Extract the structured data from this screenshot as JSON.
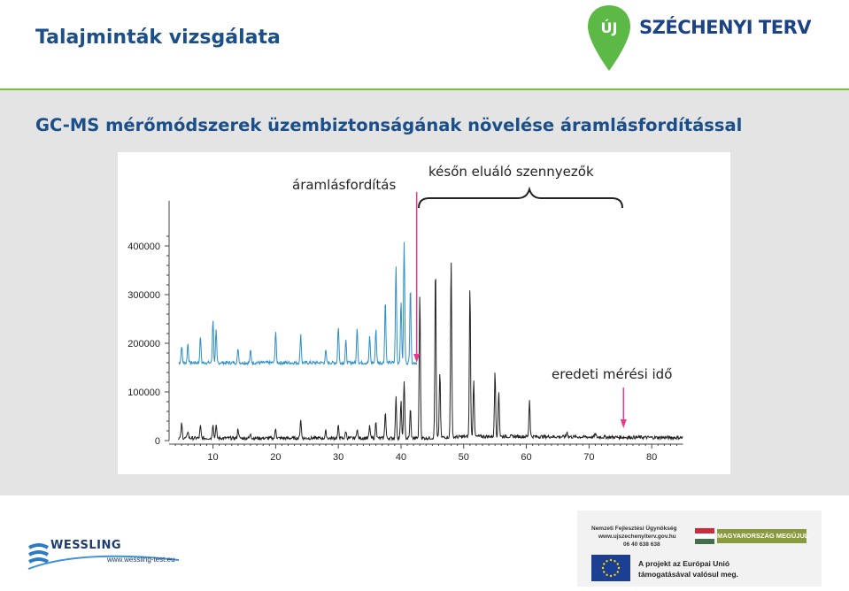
{
  "header": {
    "title": "Talajminták vizsgálata",
    "logo_text": "SZÉCHENYI TERV",
    "logo_badge": "ÚJ"
  },
  "slide": {
    "subtitle": "GC-MS mérőmódszerek üzembiztonságának növelése áramlásfordítással"
  },
  "chart_data": {
    "type": "line",
    "title": "",
    "xlabel": "",
    "ylabel": "",
    "xlim": [
      3,
      85
    ],
    "ylim": [
      0,
      420000
    ],
    "x_ticks": [
      "10",
      "20",
      "30",
      "40",
      "50",
      "60",
      "70",
      "80"
    ],
    "y_ticks": [
      "0",
      "100000",
      "200000",
      "300000",
      "400000"
    ],
    "annotations": {
      "backflush_label": "áramlásfordítás",
      "late_eluting_label": "későn eluáló szennyezők",
      "original_time_label": "eredeti mérési idő"
    },
    "backflush_time": 42.5,
    "original_end_time": 75.5,
    "series": [
      {
        "color": "#2f8fc6",
        "x_end": 42.5,
        "baseline": 160000,
        "peaks": [
          {
            "x": 5,
            "y": 195000
          },
          {
            "x": 6,
            "y": 200000
          },
          {
            "x": 8,
            "y": 215000
          },
          {
            "x": 10,
            "y": 250000
          },
          {
            "x": 10.5,
            "y": 225000
          },
          {
            "x": 14,
            "y": 190000
          },
          {
            "x": 16,
            "y": 185000
          },
          {
            "x": 20,
            "y": 225000
          },
          {
            "x": 24,
            "y": 220000
          },
          {
            "x": 28,
            "y": 185000
          },
          {
            "x": 30,
            "y": 235000
          },
          {
            "x": 31.2,
            "y": 205000
          },
          {
            "x": 33,
            "y": 235000
          },
          {
            "x": 35,
            "y": 215000
          },
          {
            "x": 36,
            "y": 230000
          },
          {
            "x": 37.5,
            "y": 290000
          },
          {
            "x": 39.2,
            "y": 362000
          },
          {
            "x": 40,
            "y": 290000
          },
          {
            "x": 40.5,
            "y": 410000
          },
          {
            "x": 41.5,
            "y": 320000
          }
        ]
      },
      {
        "color": "#222222",
        "x_end": 85,
        "baseline": 5000,
        "peaks": [
          {
            "x": 5,
            "y": 35000
          },
          {
            "x": 6,
            "y": 20000
          },
          {
            "x": 8,
            "y": 30000
          },
          {
            "x": 10,
            "y": 35000
          },
          {
            "x": 10.5,
            "y": 32000
          },
          {
            "x": 14,
            "y": 25000
          },
          {
            "x": 16,
            "y": 15000
          },
          {
            "x": 20,
            "y": 25000
          },
          {
            "x": 24,
            "y": 45000
          },
          {
            "x": 28,
            "y": 20000
          },
          {
            "x": 30,
            "y": 30000
          },
          {
            "x": 31.2,
            "y": 20000
          },
          {
            "x": 33,
            "y": 25000
          },
          {
            "x": 35,
            "y": 30000
          },
          {
            "x": 36,
            "y": 40000
          },
          {
            "x": 37.5,
            "y": 60000
          },
          {
            "x": 39.2,
            "y": 90000
          },
          {
            "x": 40,
            "y": 80000
          },
          {
            "x": 40.5,
            "y": 125000
          },
          {
            "x": 41.5,
            "y": 65000
          },
          {
            "x": 43,
            "y": 305000
          },
          {
            "x": 45.5,
            "y": 360000
          },
          {
            "x": 46.2,
            "y": 140000
          },
          {
            "x": 48,
            "y": 375000
          },
          {
            "x": 51,
            "y": 315000
          },
          {
            "x": 51.6,
            "y": 125000
          },
          {
            "x": 55,
            "y": 140000
          },
          {
            "x": 55.6,
            "y": 100000
          },
          {
            "x": 60.5,
            "y": 80000
          },
          {
            "x": 66.5,
            "y": 15000
          },
          {
            "x": 71,
            "y": 12000
          }
        ]
      }
    ]
  },
  "footer": {
    "wessling_name": "WESSLING",
    "wessling_url": "www.wessling-test.eu",
    "nfu_lines": [
      "Nemzeti Fejlesztési Ügynökség",
      "www.ujszechenyiterv.gov.hu",
      "06 40 638 638"
    ],
    "magyarorszag": "MAGYARORSZÁG MEGÚJUL",
    "eu_line1": "A projekt az Európai Unió",
    "eu_line2": "támogatásával valósul meg."
  },
  "colors": {
    "title": "#1a4f8b",
    "accent_green": "#7cc142",
    "blue_trace": "#2f8fc6",
    "black_trace": "#222222",
    "arrow": "#e8388f"
  }
}
